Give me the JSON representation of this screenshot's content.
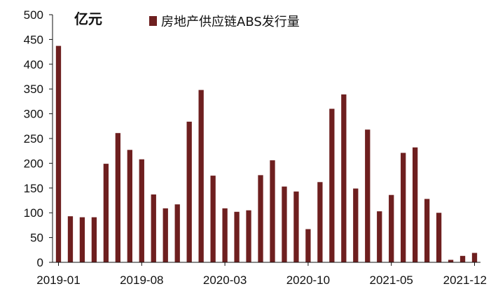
{
  "chart_data": {
    "type": "bar",
    "unit_label": "亿元",
    "series": [
      {
        "name": "房地产供应链ABS发行量",
        "color": "#6e1f1f",
        "values": [
          437,
          93,
          91,
          91,
          199,
          261,
          227,
          208,
          137,
          109,
          117,
          284,
          348,
          175,
          109,
          102,
          105,
          176,
          206,
          153,
          143,
          67,
          162,
          310,
          339,
          149,
          268,
          103,
          136,
          221,
          232,
          128,
          100,
          5,
          13,
          19
        ]
      }
    ],
    "categories": [
      "2019-01",
      "2019-02",
      "2019-03",
      "2019-04",
      "2019-05",
      "2019-06",
      "2019-07",
      "2019-08",
      "2019-09",
      "2019-10",
      "2019-11",
      "2019-12",
      "2020-01",
      "2020-02",
      "2020-03",
      "2020-04",
      "2020-05",
      "2020-06",
      "2020-07",
      "2020-08",
      "2020-09",
      "2020-10",
      "2020-11",
      "2020-12",
      "2021-01",
      "2021-02",
      "2021-03",
      "2021-04",
      "2021-05",
      "2021-06",
      "2021-07",
      "2021-08",
      "2021-09",
      "2021-10",
      "2021-11",
      "2021-12"
    ],
    "x_tick_labels": [
      "2019-01",
      "2019-08",
      "2020-03",
      "2020-10",
      "2021-05",
      "2021-12"
    ],
    "x_tick_indices": [
      0,
      7,
      14,
      21,
      28,
      35
    ],
    "y_ticks": [
      "0",
      "50",
      "100",
      "150",
      "200",
      "250",
      "300",
      "350",
      "400",
      "450",
      "500"
    ],
    "ylim": [
      0,
      500
    ],
    "grid": false,
    "legend_position": "top"
  }
}
